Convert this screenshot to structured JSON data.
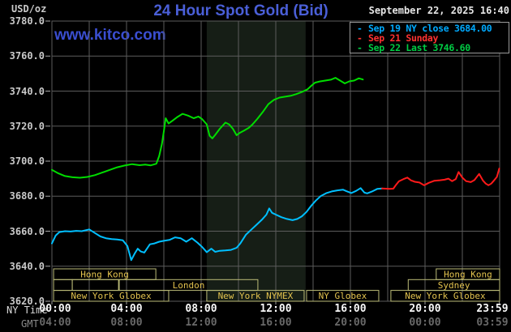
{
  "header": {
    "unit_label": "USD/oz",
    "title": "24 Hour Spot Gold (Bid)",
    "datetime": "September 22, 2025 16:40",
    "watermark": "www.kitco.com"
  },
  "legend": {
    "marker": "-",
    "items": [
      {
        "label": "Sep 19 NY close 3684.00",
        "color": "#00aaff"
      },
      {
        "label": "Sep 21 Sunday",
        "color": "#ff3232"
      },
      {
        "label": "Sep 22 Last 3746.60",
        "color": "#00cc44"
      }
    ]
  },
  "axes": {
    "ny_time_label": "NY Time",
    "gmt_label": "GMT",
    "x_ticks": [
      {
        "t": 0.0,
        "ny": "00:00",
        "gmt": "04:00"
      },
      {
        "t": 4.0,
        "ny": "04:00",
        "gmt": "08:00"
      },
      {
        "t": 8.0,
        "ny": "08:00",
        "gmt": "12:00"
      },
      {
        "t": 12.0,
        "ny": "12:00",
        "gmt": "16:00"
      },
      {
        "t": 16.0,
        "ny": "16:00",
        "gmt": "20:00"
      },
      {
        "t": 20.0,
        "ny": "20:00",
        "gmt": "00:00"
      },
      {
        "t": 23.983,
        "ny": "23:59",
        "gmt": "03:59"
      }
    ],
    "y_ticks": [
      "3780.0",
      "3760.0",
      "3740.0",
      "3720.0",
      "3700.0",
      "3680.0",
      "3660.0",
      "3640.0",
      "3620.0"
    ]
  },
  "chart_data": {
    "type": "line",
    "title": "24 Hour Spot Gold (Bid)",
    "xlabel": "NY Time (hours)",
    "ylabel": "USD/oz",
    "x_range": [
      0,
      24
    ],
    "ylim": [
      3620,
      3780
    ],
    "y_step": 20,
    "x_grid_step_hours": 2,
    "grid": true,
    "legend_position": "top-right",
    "shaded_region": {
      "name": "ny-nymex-floor-session",
      "start": 8.3,
      "end": 13.6,
      "color": "#161e16"
    },
    "series": [
      {
        "name": "Sep 19 NY close",
        "color": "#00bfff",
        "close_value": 3684.0,
        "points": [
          [
            0,
            3653
          ],
          [
            0.2,
            3657.5
          ],
          [
            0.4,
            3659.5
          ],
          [
            0.7,
            3660
          ],
          [
            1.0,
            3659.8
          ],
          [
            1.3,
            3660.2
          ],
          [
            1.6,
            3660
          ],
          [
            2.0,
            3661
          ],
          [
            2.3,
            3659
          ],
          [
            2.6,
            3657
          ],
          [
            2.9,
            3656
          ],
          [
            3.2,
            3655.5
          ],
          [
            3.5,
            3655.3
          ],
          [
            3.8,
            3654.8
          ],
          [
            4.05,
            3651.5
          ],
          [
            4.25,
            3643.5
          ],
          [
            4.45,
            3647.5
          ],
          [
            4.6,
            3650
          ],
          [
            4.75,
            3648.5
          ],
          [
            4.95,
            3647.8
          ],
          [
            5.25,
            3652.5
          ],
          [
            5.5,
            3653
          ],
          [
            5.75,
            3654
          ],
          [
            6.0,
            3654.5
          ],
          [
            6.3,
            3655
          ],
          [
            6.6,
            3656.5
          ],
          [
            6.9,
            3656
          ],
          [
            7.2,
            3654
          ],
          [
            7.5,
            3656
          ],
          [
            7.8,
            3653.5
          ],
          [
            8.05,
            3651
          ],
          [
            8.3,
            3648
          ],
          [
            8.55,
            3650
          ],
          [
            8.75,
            3648.2
          ],
          [
            9.0,
            3648.8
          ],
          [
            9.3,
            3649
          ],
          [
            9.6,
            3649.3
          ],
          [
            9.9,
            3650.5
          ],
          [
            10.1,
            3653
          ],
          [
            10.4,
            3658
          ],
          [
            10.7,
            3661
          ],
          [
            11.0,
            3664
          ],
          [
            11.25,
            3666.5
          ],
          [
            11.5,
            3669.5
          ],
          [
            11.65,
            3673
          ],
          [
            11.8,
            3670.5
          ],
          [
            12.0,
            3669.5
          ],
          [
            12.3,
            3668
          ],
          [
            12.6,
            3667
          ],
          [
            12.9,
            3666.3
          ],
          [
            13.15,
            3667
          ],
          [
            13.4,
            3668.5
          ],
          [
            13.65,
            3671
          ],
          [
            13.9,
            3674.5
          ],
          [
            14.15,
            3677.5
          ],
          [
            14.4,
            3680
          ],
          [
            14.7,
            3681.7
          ],
          [
            15.0,
            3682.7
          ],
          [
            15.3,
            3683.3
          ],
          [
            15.6,
            3683.7
          ],
          [
            15.8,
            3682.8
          ],
          [
            16.05,
            3681.8
          ],
          [
            16.3,
            3683
          ],
          [
            16.55,
            3684.6
          ],
          [
            16.75,
            3682
          ],
          [
            16.9,
            3681.6
          ],
          [
            17.15,
            3682.6
          ],
          [
            17.45,
            3684.2
          ],
          [
            17.7,
            3684.4
          ]
        ]
      },
      {
        "name": "Sep 21 Sunday",
        "color": "#ff1a1a",
        "points": [
          [
            17.7,
            3684.4
          ],
          [
            18.1,
            3684.2
          ],
          [
            18.3,
            3684.3
          ],
          [
            18.45,
            3686.5
          ],
          [
            18.6,
            3688.5
          ],
          [
            18.85,
            3689.8
          ],
          [
            19.05,
            3690.6
          ],
          [
            19.25,
            3689
          ],
          [
            19.45,
            3688.2
          ],
          [
            19.7,
            3687.8
          ],
          [
            19.95,
            3686.2
          ],
          [
            20.2,
            3687.6
          ],
          [
            20.5,
            3688.8
          ],
          [
            20.8,
            3689.1
          ],
          [
            21.05,
            3689.4
          ],
          [
            21.25,
            3690
          ],
          [
            21.45,
            3688.6
          ],
          [
            21.65,
            3689.8
          ],
          [
            21.8,
            3693.8
          ],
          [
            22.0,
            3690.6
          ],
          [
            22.2,
            3688.6
          ],
          [
            22.45,
            3688
          ],
          [
            22.65,
            3689.2
          ],
          [
            22.9,
            3692.7
          ],
          [
            23.1,
            3689
          ],
          [
            23.25,
            3687.2
          ],
          [
            23.4,
            3686.2
          ],
          [
            23.55,
            3687.2
          ],
          [
            23.7,
            3689
          ],
          [
            23.85,
            3691
          ],
          [
            23.98,
            3695.8
          ]
        ]
      },
      {
        "name": "Sep 22 Last",
        "color": "#00dd00",
        "last_value": 3746.6,
        "points": [
          [
            0,
            3695
          ],
          [
            0.35,
            3693
          ],
          [
            0.7,
            3691.5
          ],
          [
            1.1,
            3690.8
          ],
          [
            1.5,
            3690.5
          ],
          [
            1.9,
            3691
          ],
          [
            2.3,
            3692
          ],
          [
            2.7,
            3693.5
          ],
          [
            3.1,
            3695
          ],
          [
            3.5,
            3696.5
          ],
          [
            3.9,
            3697.5
          ],
          [
            4.3,
            3698.3
          ],
          [
            4.7,
            3697.7
          ],
          [
            5.0,
            3698
          ],
          [
            5.3,
            3697.6
          ],
          [
            5.6,
            3698.5
          ],
          [
            5.75,
            3703
          ],
          [
            5.9,
            3710
          ],
          [
            6.0,
            3717
          ],
          [
            6.1,
            3724.5
          ],
          [
            6.25,
            3721.5
          ],
          [
            6.45,
            3723
          ],
          [
            6.7,
            3725
          ],
          [
            7.0,
            3727
          ],
          [
            7.3,
            3726
          ],
          [
            7.6,
            3724.5
          ],
          [
            7.85,
            3725.5
          ],
          [
            8.05,
            3724
          ],
          [
            8.3,
            3721
          ],
          [
            8.45,
            3714.5
          ],
          [
            8.6,
            3713
          ],
          [
            8.75,
            3715
          ],
          [
            9.0,
            3718.5
          ],
          [
            9.3,
            3722
          ],
          [
            9.5,
            3721
          ],
          [
            9.7,
            3718.5
          ],
          [
            9.9,
            3714.8
          ],
          [
            10.05,
            3716
          ],
          [
            10.3,
            3717.5
          ],
          [
            10.55,
            3719
          ],
          [
            10.75,
            3721
          ],
          [
            11.0,
            3724
          ],
          [
            11.3,
            3728
          ],
          [
            11.6,
            3732.5
          ],
          [
            11.9,
            3735
          ],
          [
            12.2,
            3736.3
          ],
          [
            12.5,
            3736.8
          ],
          [
            12.8,
            3737.3
          ],
          [
            13.1,
            3738.3
          ],
          [
            13.4,
            3739.5
          ],
          [
            13.7,
            3741
          ],
          [
            13.9,
            3743
          ],
          [
            14.1,
            3744.8
          ],
          [
            14.35,
            3745.5
          ],
          [
            14.65,
            3746
          ],
          [
            14.95,
            3746.5
          ],
          [
            15.2,
            3747.6
          ],
          [
            15.45,
            3746
          ],
          [
            15.7,
            3744.4
          ],
          [
            15.95,
            3745.6
          ],
          [
            16.2,
            3746
          ],
          [
            16.45,
            3747.3
          ],
          [
            16.67,
            3746.6
          ]
        ]
      }
    ],
    "sessions": {
      "rows": [
        {
          "name": "session-row-1",
          "boxes": [
            {
              "label": "Hong Kong",
              "start": 0.09,
              "end": 5.57
            },
            {
              "label": "Hong Kong",
              "start": 20.6,
              "end": 24
            }
          ]
        },
        {
          "name": "session-row-2",
          "boxes": [
            {
              "label": "",
              "start": 0.09,
              "end": 1.09
            },
            {
              "label": "",
              "start": 1.09,
              "end": 3.57
            },
            {
              "label": "London",
              "start": 3.61,
              "end": 11.04
            },
            {
              "label": "Sydney",
              "start": 19.1,
              "end": 24
            }
          ]
        },
        {
          "name": "session-row-3",
          "boxes": [
            {
              "label": "New York Globex",
              "start": 0.09,
              "end": 6.26
            },
            {
              "label": "New York NYMEX",
              "start": 8.3,
              "end": 13.52
            },
            {
              "label": "NY Globex",
              "start": 13.65,
              "end": 17.52
            },
            {
              "label": "New York Globex",
              "start": 18.17,
              "end": 24
            }
          ]
        }
      ],
      "box_border_color": "#bcbc78",
      "label_color": "#e2c24e"
    },
    "colors": {
      "grid": "#5c5c5c",
      "border": "#5c5c5c",
      "background": "#000000"
    }
  }
}
